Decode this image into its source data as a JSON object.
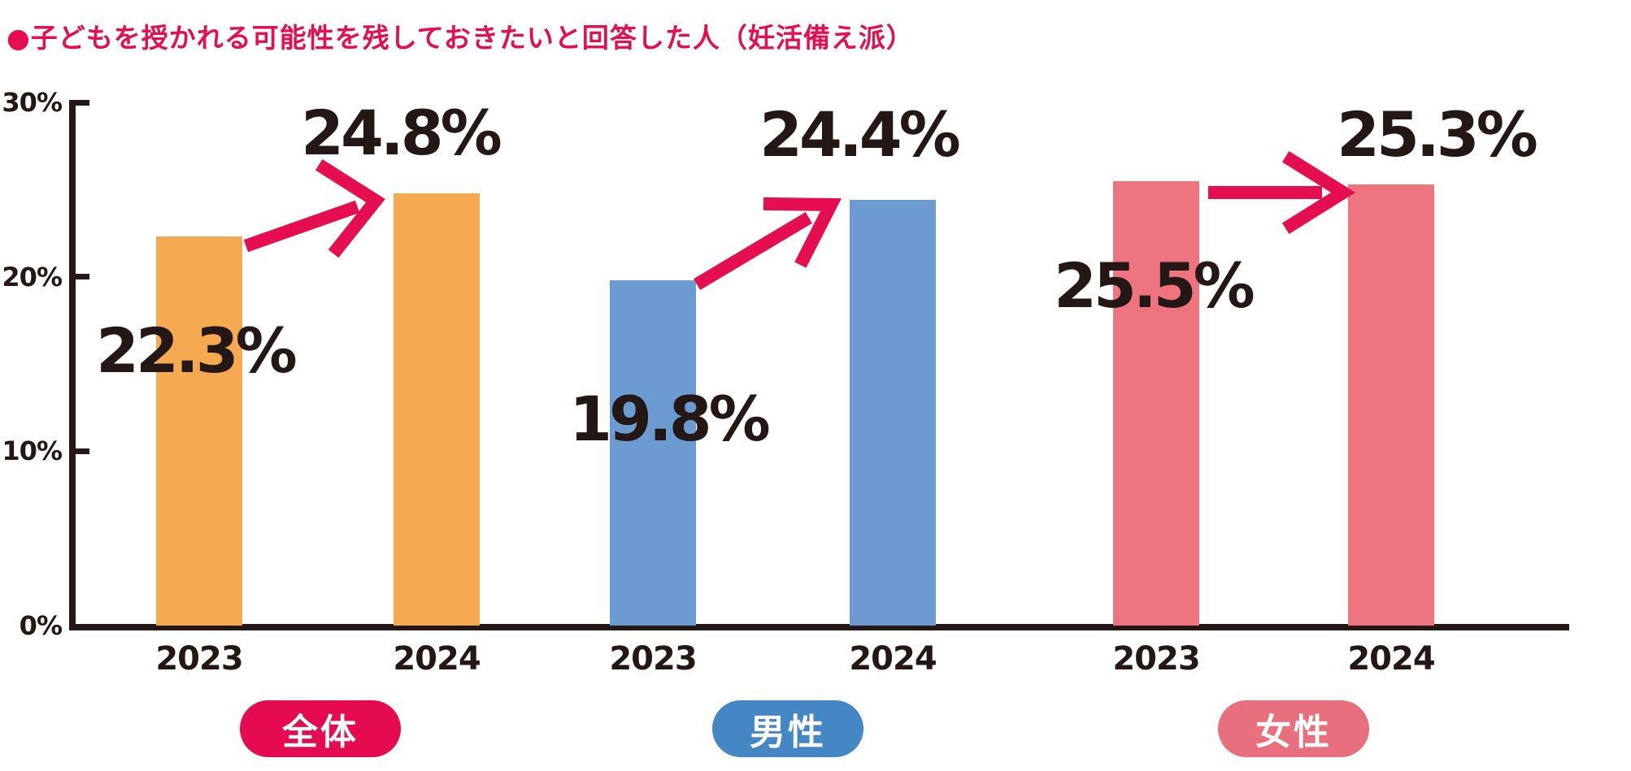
{
  "title": "●子どもを授かれる可能性を残しておきたいと回答した人（妊活備え派）",
  "colors": {
    "accent_crimson": "#e40e51",
    "text_dark": "#231815",
    "overall_bar": "#f5a950",
    "male_bar": "#6c9bd1",
    "female_bar": "#ee7480",
    "overall_pill": "#e50b51",
    "male_pill": "#4586c5",
    "female_pill": "#e86f7d"
  },
  "chart_data": {
    "type": "bar",
    "unit": "%",
    "ylim": [
      0,
      30
    ],
    "grid": false,
    "legend_position": "bottom",
    "y_ticks": [
      {
        "label": "30%",
        "value": 30
      },
      {
        "label": "20%",
        "value": 20
      },
      {
        "label": "10%",
        "value": 10
      },
      {
        "label": "0%",
        "value": 0
      }
    ],
    "groups": [
      {
        "name": "全体",
        "trend": "increase",
        "bars": [
          {
            "year": "2023",
            "value": 22.3,
            "label": "22.3%"
          },
          {
            "year": "2024",
            "value": 24.8,
            "label": "24.8%"
          }
        ]
      },
      {
        "name": "男性",
        "trend": "increase",
        "bars": [
          {
            "year": "2023",
            "value": 19.8,
            "label": "19.8%"
          },
          {
            "year": "2024",
            "value": 24.4,
            "label": "24.4%"
          }
        ]
      },
      {
        "name": "女性",
        "trend": "flat",
        "bars": [
          {
            "year": "2023",
            "value": 25.5,
            "label": "25.5%"
          },
          {
            "year": "2024",
            "value": 25.3,
            "label": "25.3%"
          }
        ]
      }
    ]
  },
  "legend": [
    {
      "label": "全体"
    },
    {
      "label": "男性"
    },
    {
      "label": "女性"
    }
  ]
}
